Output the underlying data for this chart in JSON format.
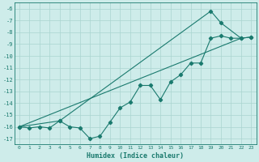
{
  "xlabel": "Humidex (Indice chaleur)",
  "bg_color": "#ceecea",
  "grid_color": "#aad4d0",
  "line_color": "#1a7a6e",
  "ylim": [
    -17.5,
    -5.5
  ],
  "xlim": [
    -0.5,
    23.5
  ],
  "yticks": [
    -6,
    -7,
    -8,
    -9,
    -10,
    -11,
    -12,
    -13,
    -14,
    -15,
    -16,
    -17
  ],
  "xticks": [
    0,
    1,
    2,
    3,
    4,
    5,
    6,
    7,
    8,
    9,
    10,
    11,
    12,
    13,
    14,
    15,
    16,
    17,
    18,
    19,
    20,
    21,
    22,
    23
  ],
  "series1_x": [
    0,
    1,
    2,
    3,
    4,
    5,
    6,
    7,
    8,
    9,
    10,
    11,
    12,
    13,
    14,
    15,
    16,
    17,
    18,
    19,
    20,
    21,
    22,
    23
  ],
  "series1_y": [
    -16.0,
    -16.1,
    -16.0,
    -16.1,
    -15.5,
    -16.0,
    -16.1,
    -17.0,
    -16.8,
    -15.6,
    -14.4,
    -13.9,
    -12.5,
    -12.5,
    -13.7,
    -12.2,
    -11.6,
    -10.6,
    -10.6,
    -8.5,
    -8.3,
    -8.5,
    -8.5,
    -8.4
  ],
  "series2_x": [
    0,
    22
  ],
  "series2_y": [
    -16.0,
    -8.5
  ],
  "series3_x": [
    0,
    4,
    19,
    20,
    22,
    23
  ],
  "series3_y": [
    -16.0,
    -15.5,
    -6.2,
    -7.2,
    -8.5,
    -8.4
  ]
}
